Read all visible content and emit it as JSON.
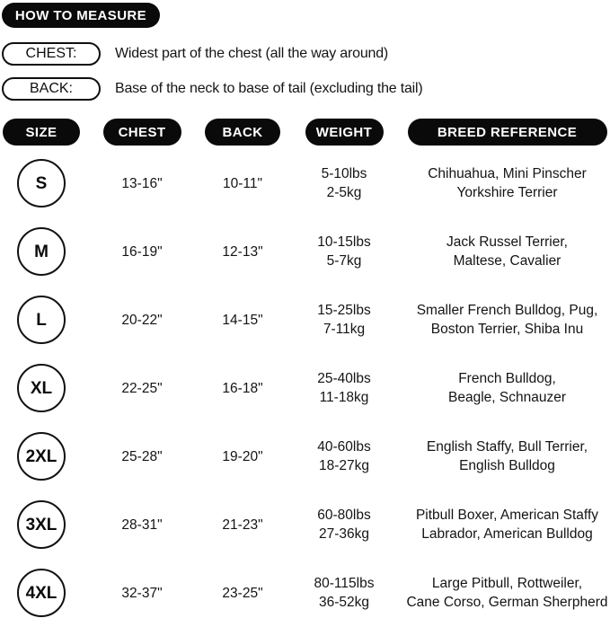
{
  "header": {
    "title": "HOW TO MEASURE"
  },
  "definitions": [
    {
      "label": "CHEST:",
      "text": "Widest part of the chest (all the way around)"
    },
    {
      "label": "BACK:",
      "text": "Base of the neck to base of tail (excluding the tail)"
    }
  ],
  "table": {
    "columns": [
      "SIZE",
      "CHEST",
      "BACK",
      "WEIGHT",
      "BREED REFERENCE"
    ],
    "rows": [
      {
        "size": "S",
        "chest": "13-16\"",
        "back": "10-11\"",
        "weight_lbs": "5-10lbs",
        "weight_kg": "2-5kg",
        "breed_line1": "Chihuahua, Mini Pinscher",
        "breed_line2": "Yorkshire Terrier"
      },
      {
        "size": "M",
        "chest": "16-19\"",
        "back": "12-13\"",
        "weight_lbs": "10-15lbs",
        "weight_kg": "5-7kg",
        "breed_line1": "Jack Russel Terrier,",
        "breed_line2": "Maltese, Cavalier"
      },
      {
        "size": "L",
        "chest": "20-22\"",
        "back": "14-15\"",
        "weight_lbs": "15-25lbs",
        "weight_kg": "7-11kg",
        "breed_line1": "Smaller French Bulldog, Pug,",
        "breed_line2": "Boston Terrier, Shiba Inu"
      },
      {
        "size": "XL",
        "chest": "22-25\"",
        "back": "16-18\"",
        "weight_lbs": "25-40lbs",
        "weight_kg": "11-18kg",
        "breed_line1": "French Bulldog,",
        "breed_line2": "Beagle, Schnauzer"
      },
      {
        "size": "2XL",
        "chest": "25-28\"",
        "back": "19-20\"",
        "weight_lbs": "40-60lbs",
        "weight_kg": "18-27kg",
        "breed_line1": "English Staffy, Bull Terrier,",
        "breed_line2": "English Bulldog"
      },
      {
        "size": "3XL",
        "chest": "28-31\"",
        "back": "21-23\"",
        "weight_lbs": "60-80lbs",
        "weight_kg": "27-36kg",
        "breed_line1": "Pitbull Boxer, American Staffy",
        "breed_line2": "Labrador, American Bulldog"
      },
      {
        "size": "4XL",
        "chest": "32-37\"",
        "back": "23-25\"",
        "weight_lbs": "80-115lbs",
        "weight_kg": "36-52kg",
        "breed_line1": "Large Pitbull, Rottweiler,",
        "breed_line2": "Cane Corso, German Sherpherd"
      }
    ]
  },
  "colors": {
    "pill_bg": "#0a0a0a",
    "pill_text": "#ffffff",
    "body_text": "#141414"
  }
}
